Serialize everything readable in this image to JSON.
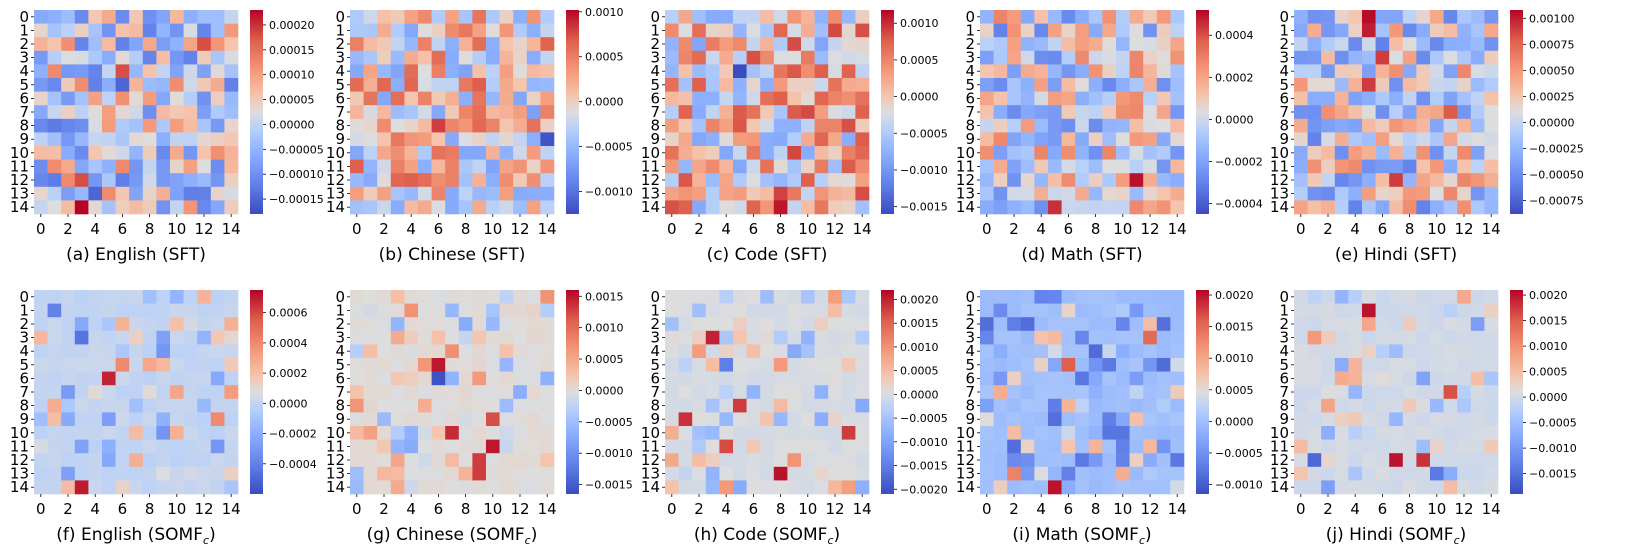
{
  "chart_data": [
    {
      "type": "heatmap",
      "id": "a",
      "caption": "(a) English (SFT)",
      "vmin": -0.00018,
      "vmax": 0.00023,
      "cbar_ticks": [
        "0.00020",
        "0.00015",
        "0.00010",
        "0.00005",
        "0.00000",
        "−0.00005",
        "−0.00010",
        "−0.00015"
      ],
      "cbar_values": [
        0.0002,
        0.00015,
        0.0001,
        5e-05,
        0,
        -5e-05,
        -0.0001,
        -0.00015
      ],
      "seed": 11,
      "sparse": false,
      "hot": [
        [
          14,
          3,
          0.00023
        ],
        [
          12,
          3,
          0.00018
        ],
        [
          2,
          12,
          0.00018
        ],
        [
          4,
          6,
          0.00018
        ],
        [
          5,
          6,
          -0.00015
        ],
        [
          13,
          4,
          -0.00015
        ]
      ]
    },
    {
      "type": "heatmap",
      "id": "b",
      "caption": "(b) Chinese (SFT)",
      "vmin": -0.00125,
      "vmax": 0.00102,
      "cbar_ticks": [
        "0.0010",
        "0.0005",
        "0.0000",
        "−0.0005",
        "−0.0010"
      ],
      "cbar_values": [
        0.001,
        0.0005,
        0,
        -0.0005,
        -0.001
      ],
      "seed": 23,
      "sparse": false,
      "hot": [
        [
          9,
          14,
          -0.0012
        ],
        [
          8,
          6,
          0.0008
        ],
        [
          4,
          6,
          0.0005
        ]
      ]
    },
    {
      "type": "heatmap",
      "id": "c",
      "caption": "(c) Code (SFT)",
      "vmin": -0.0016,
      "vmax": 0.00118,
      "cbar_ticks": [
        "0.0010",
        "0.0005",
        "0.0000",
        "−0.0005",
        "−0.0010",
        "−0.0015"
      ],
      "cbar_values": [
        0.001,
        0.0005,
        0,
        -0.0005,
        -0.001,
        -0.0015
      ],
      "seed": 37,
      "sparse": false,
      "hot": [
        [
          4,
          5,
          -0.0016
        ],
        [
          14,
          8,
          0.0011
        ],
        [
          13,
          8,
          0.0009
        ],
        [
          8,
          5,
          0.0008
        ]
      ]
    },
    {
      "type": "heatmap",
      "id": "d",
      "caption": "(d) Math (SFT)",
      "vmin": -0.00045,
      "vmax": 0.00052,
      "cbar_ticks": [
        "0.0004",
        "0.0002",
        "0.0000",
        "−0.0002",
        "−0.0004"
      ],
      "cbar_values": [
        0.0004,
        0.0002,
        0,
        -0.0002,
        -0.0004
      ],
      "seed": 41,
      "sparse": false,
      "hot": [
        [
          12,
          11,
          0.0005
        ],
        [
          14,
          5,
          0.00045
        ],
        [
          1,
          1,
          -0.0003
        ]
      ]
    },
    {
      "type": "heatmap",
      "id": "e",
      "caption": "(e) Hindi (SFT)",
      "vmin": -0.00088,
      "vmax": 0.00108,
      "cbar_ticks": [
        "0.00100",
        "0.00075",
        "0.00050",
        "0.00025",
        "0.00000",
        "−0.00025",
        "−0.00050",
        "−0.00075"
      ],
      "cbar_values": [
        0.001,
        0.00075,
        0.0005,
        0.00025,
        0,
        -0.00025,
        -0.0005,
        -0.00075
      ],
      "seed": 53,
      "sparse": false,
      "hot": [
        [
          0,
          5,
          0.00105
        ],
        [
          1,
          5,
          0.001
        ],
        [
          3,
          6,
          0.0009
        ],
        [
          5,
          5,
          0.0009
        ],
        [
          12,
          7,
          0.0009
        ],
        [
          7,
          11,
          0.0008
        ]
      ]
    },
    {
      "type": "heatmap",
      "id": "f",
      "caption": "(f) English (SOMF",
      "caption_sub": "c",
      "caption_end": ")",
      "vmin": -0.0006,
      "vmax": 0.00075,
      "cbar_ticks": [
        "0.0006",
        "0.0004",
        "0.0002",
        "0.0000",
        "−0.0002",
        "−0.0004"
      ],
      "cbar_values": [
        0.0006,
        0.0004,
        0.0002,
        0,
        -0.0002,
        -0.0004
      ],
      "seed": 67,
      "sparse": true,
      "hot": [
        [
          6,
          5,
          0.00068
        ],
        [
          14,
          3,
          0.0007
        ],
        [
          3,
          3,
          -0.00045
        ],
        [
          1,
          1,
          -0.0004
        ],
        [
          5,
          6,
          0.0004
        ],
        [
          9,
          13,
          0.0004
        ]
      ]
    },
    {
      "type": "heatmap",
      "id": "g",
      "caption": "(g) Chinese (SOMF",
      "caption_sub": "c",
      "caption_end": ")",
      "vmin": -0.00165,
      "vmax": 0.0016,
      "cbar_ticks": [
        "0.0015",
        "0.0010",
        "0.0005",
        "0.0000",
        "−0.0005",
        "−0.0010",
        "−0.0015"
      ],
      "cbar_values": [
        0.0015,
        0.001,
        0.0005,
        0,
        -0.0005,
        -0.001,
        -0.0015
      ],
      "seed": 71,
      "sparse": true,
      "hot": [
        [
          5,
          6,
          0.0015
        ],
        [
          6,
          6,
          -0.0016
        ],
        [
          10,
          7,
          0.0014
        ],
        [
          11,
          10,
          0.0015
        ],
        [
          12,
          9,
          0.0013
        ],
        [
          13,
          9,
          0.0013
        ],
        [
          9,
          10,
          0.0012
        ]
      ]
    },
    {
      "type": "heatmap",
      "id": "h",
      "caption": "(h) Code (SOMF",
      "caption_sub": "c",
      "caption_end": ")",
      "vmin": -0.0021,
      "vmax": 0.0022,
      "cbar_ticks": [
        "0.0020",
        "0.0015",
        "0.0010",
        "0.0005",
        "0.0000",
        "−0.0005",
        "−0.0010",
        "−0.0015",
        "−0.0020"
      ],
      "cbar_values": [
        0.002,
        0.0015,
        0.001,
        0.0005,
        0,
        -0.0005,
        -0.001,
        -0.0015,
        -0.002
      ],
      "seed": 83,
      "sparse": true,
      "hot": [
        [
          3,
          3,
          0.002
        ],
        [
          13,
          8,
          0.0021
        ],
        [
          9,
          1,
          0.0019
        ],
        [
          8,
          5,
          0.0018
        ],
        [
          10,
          13,
          0.0018
        ],
        [
          11,
          4,
          0.0017
        ],
        [
          5,
          4,
          -0.0015
        ]
      ]
    },
    {
      "type": "heatmap",
      "id": "i",
      "caption": "(i) Math (SOMF",
      "caption_sub": "c",
      "caption_end": ")",
      "vmin": -0.00115,
      "vmax": 0.00208,
      "cbar_ticks": [
        "0.0020",
        "0.0015",
        "0.0010",
        "0.0005",
        "0.0000",
        "−0.0005",
        "−0.0010"
      ],
      "cbar_values": [
        0.002,
        0.0015,
        0.001,
        0.0005,
        0,
        -0.0005,
        -0.001
      ],
      "seed": 97,
      "sparse": true,
      "hot": [
        [
          14,
          5,
          0.002
        ],
        [
          5,
          6,
          0.0016
        ],
        [
          3,
          12,
          0.0015
        ],
        [
          13,
          2,
          0.0013
        ]
      ]
    },
    {
      "type": "heatmap",
      "id": "j",
      "caption": "(j) Hindi (SOMF",
      "caption_sub": "c",
      "caption_end": ")",
      "vmin": -0.0019,
      "vmax": 0.0021,
      "cbar_ticks": [
        "0.0020",
        "0.0015",
        "0.0010",
        "0.0005",
        "0.0000",
        "−0.0005",
        "−0.0010",
        "−0.0015"
      ],
      "cbar_values": [
        0.002,
        0.0015,
        0.001,
        0.0005,
        0,
        -0.0005,
        -0.001,
        -0.0015
      ],
      "seed": 101,
      "sparse": true,
      "hot": [
        [
          1,
          5,
          0.002
        ],
        [
          12,
          7,
          0.002
        ],
        [
          12,
          9,
          0.0018
        ],
        [
          7,
          11,
          0.0016
        ],
        [
          12,
          1,
          -0.0016
        ],
        [
          13,
          10,
          -0.0014
        ]
      ]
    }
  ],
  "axis": {
    "row_labels": [
      "0",
      "1",
      "2",
      "3",
      "4",
      "5",
      "6",
      "7",
      "8",
      "9",
      "10",
      "11",
      "12",
      "13",
      "14"
    ],
    "col_labels": [
      "0",
      "2",
      "4",
      "6",
      "8",
      "10",
      "12",
      "14"
    ],
    "col_label_values": [
      0,
      2,
      4,
      6,
      8,
      10,
      12,
      14
    ]
  },
  "colors": {
    "cmap": "coolwarm",
    "low": "#3b4cc0",
    "mid": "#dddddd",
    "high": "#b40426"
  }
}
